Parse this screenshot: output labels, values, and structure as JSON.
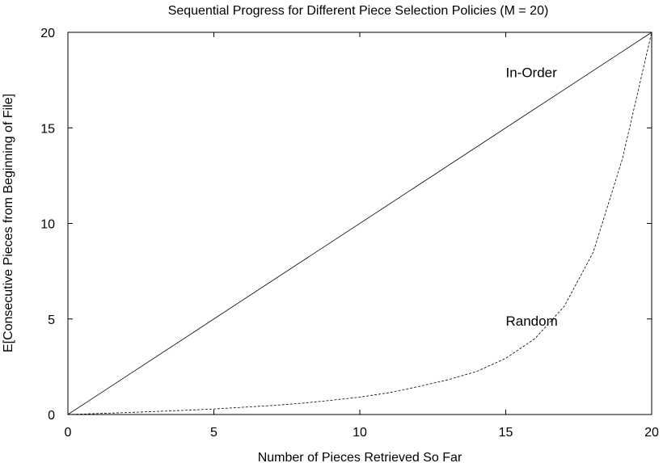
{
  "chart_data": {
    "type": "line",
    "title": "Sequential Progress for Different Piece Selection Policies (M = 20)",
    "xlabel": "Number of Pieces Retrieved So Far",
    "ylabel": "E[Consecutive Pieces from Beginning of File]",
    "xlim": [
      0,
      20
    ],
    "ylim": [
      0,
      20
    ],
    "xticks": [
      0,
      5,
      10,
      15,
      20
    ],
    "yticks": [
      0,
      5,
      10,
      15,
      20
    ],
    "grid": false,
    "legend": "none",
    "series": [
      {
        "name": "In-Order",
        "style": "solid",
        "color": "#000000",
        "label_at": [
          15,
          17.9
        ],
        "x": [
          0,
          20
        ],
        "y": [
          0,
          20
        ]
      },
      {
        "name": "Random",
        "style": "dashed",
        "color": "#000000",
        "label_at": [
          15,
          4.9
        ],
        "x": [
          0,
          1,
          2,
          3,
          4,
          5,
          6,
          7,
          8,
          9,
          10,
          11,
          12,
          13,
          14,
          15,
          16,
          17,
          18,
          19,
          20
        ],
        "y": [
          0,
          0.05,
          0.1,
          0.16,
          0.22,
          0.29,
          0.38,
          0.47,
          0.59,
          0.74,
          0.91,
          1.14,
          1.46,
          1.81,
          2.25,
          2.94,
          3.97,
          5.65,
          8.5,
          13.4,
          20
        ]
      }
    ]
  }
}
